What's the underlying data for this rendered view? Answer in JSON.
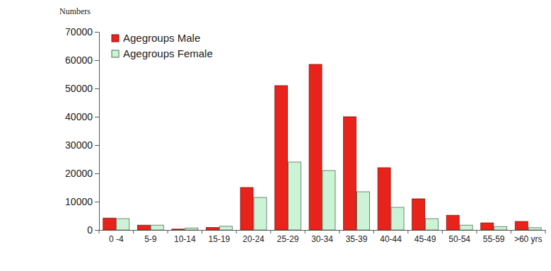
{
  "chart_data": {
    "type": "bar",
    "y_label": "Numbers",
    "categories": [
      "0 -4",
      "5-9",
      "10-14",
      "15-19",
      "20-24",
      "25-29",
      "30-34",
      "35-39",
      "40-44",
      "45-49",
      "50-54",
      "55-59",
      ">60 yrs"
    ],
    "series": [
      {
        "name": "Agegroups Male",
        "color": "#e8231b",
        "values": [
          4200,
          1700,
          300,
          900,
          15000,
          51000,
          58500,
          40000,
          22000,
          11000,
          5200,
          2500,
          3000
        ]
      },
      {
        "name": "Agegroups Female",
        "color": "#cdf3d6",
        "values": [
          4000,
          1700,
          700,
          1300,
          11500,
          24000,
          21000,
          13500,
          8000,
          4000,
          1700,
          1200,
          800
        ]
      }
    ],
    "ylim": [
      0,
      70000
    ],
    "yticks": [
      0,
      10000,
      20000,
      30000,
      40000,
      50000,
      60000,
      70000
    ],
    "grid": false,
    "legend": "upper left"
  }
}
